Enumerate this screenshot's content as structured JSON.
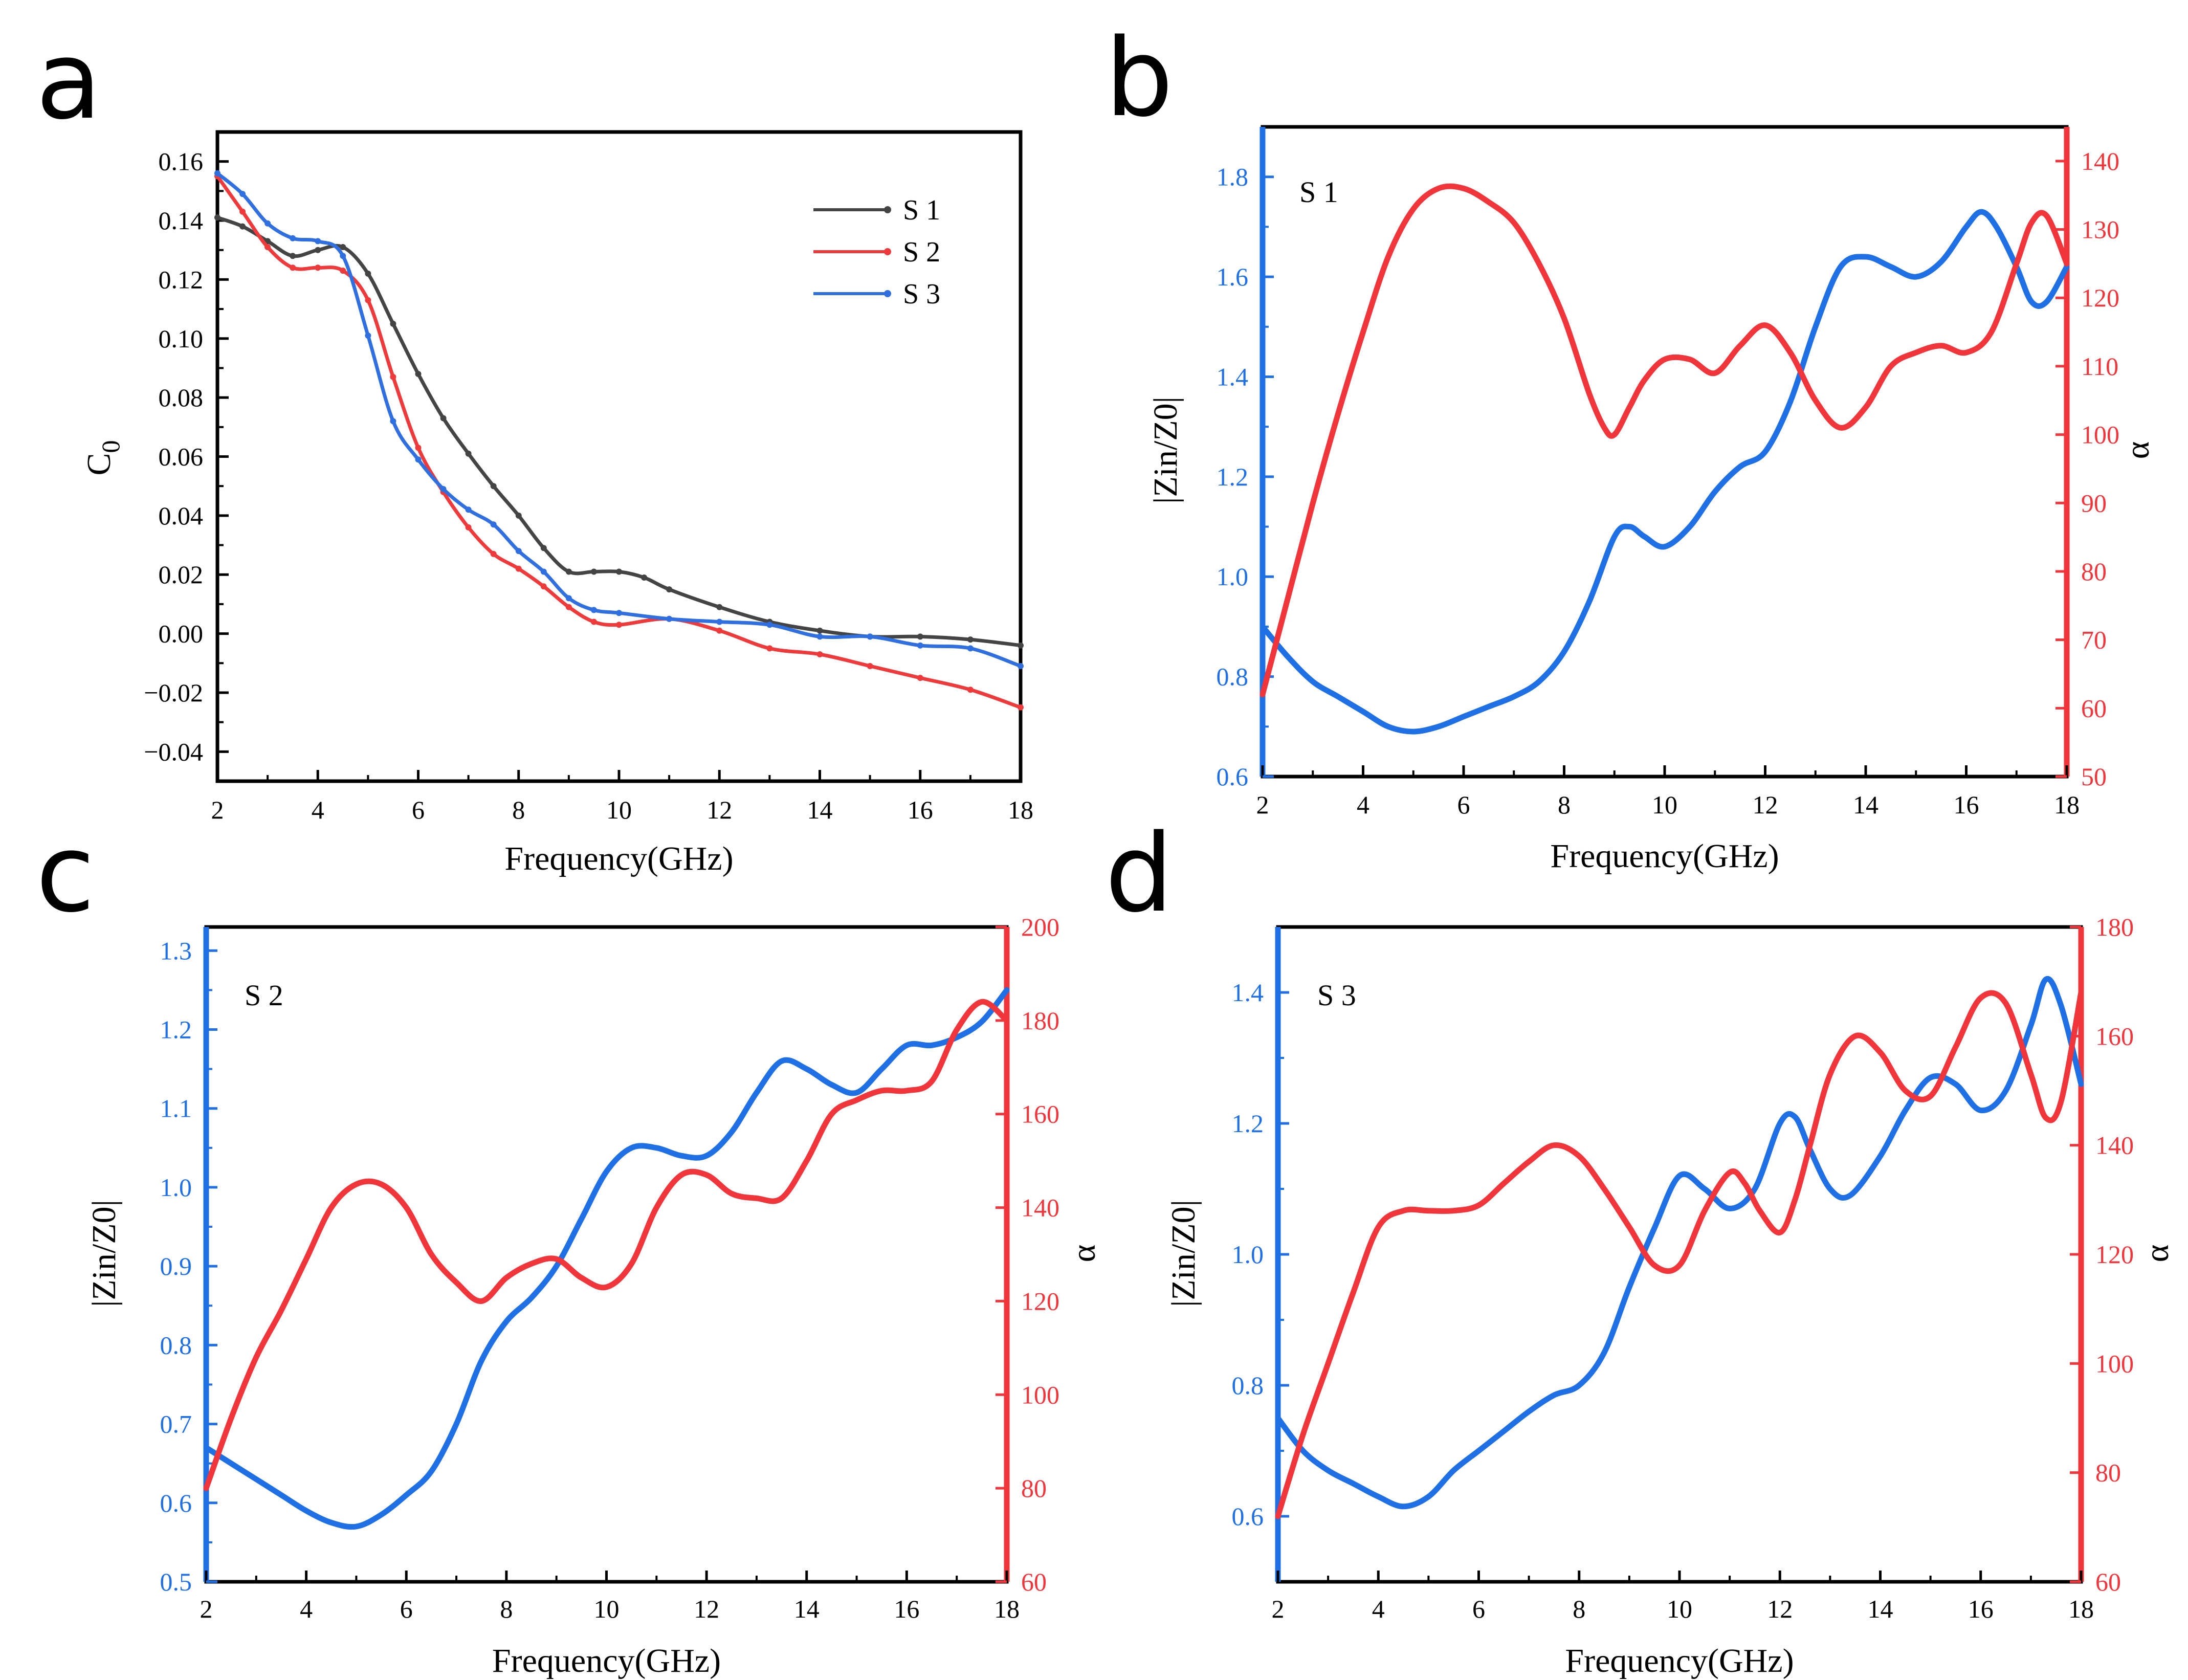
{
  "colors": {
    "s1": "#444444",
    "s2": "#ee3a3a",
    "s3": "#2f6fe0",
    "blue_axis": "#1f6fe5",
    "red_axis": "#f0353b",
    "frame": "#000000"
  },
  "chart_data": [
    {
      "id": "a",
      "letter": "a",
      "type": "line",
      "xlabel": "Frequency(GHz)",
      "ylabel": "C",
      "ylabel_sub": "0",
      "xlim": [
        2,
        18
      ],
      "ylim": [
        -0.05,
        0.17
      ],
      "xticks": [
        2,
        4,
        6,
        8,
        10,
        12,
        14,
        16,
        18
      ],
      "xtick_labels": [
        "2",
        "4",
        "6",
        "8",
        "10",
        "12",
        "14",
        "16",
        "18"
      ],
      "yticks": [
        -0.04,
        -0.02,
        0.0,
        0.02,
        0.04,
        0.06,
        0.08,
        0.1,
        0.12,
        0.14,
        0.16
      ],
      "ytick_labels": [
        "−0.04",
        "−0.02",
        "0.00",
        "0.02",
        "0.04",
        "0.06",
        "0.08",
        "0.10",
        "0.12",
        "0.14",
        "0.16"
      ],
      "legend_position": "top-right",
      "series": [
        {
          "name": "S 1",
          "color": "#444444",
          "x": [
            2,
            2.5,
            3,
            3.5,
            4,
            4.5,
            5,
            5.5,
            6,
            6.5,
            7,
            7.5,
            8,
            8.5,
            9,
            9.5,
            10,
            10.5,
            11,
            12,
            13,
            14,
            15,
            16,
            17,
            18
          ],
          "y": [
            0.141,
            0.138,
            0.133,
            0.128,
            0.13,
            0.131,
            0.122,
            0.105,
            0.088,
            0.073,
            0.061,
            0.05,
            0.04,
            0.029,
            0.021,
            0.021,
            0.021,
            0.019,
            0.015,
            0.009,
            0.004,
            0.001,
            -0.001,
            -0.001,
            -0.002,
            -0.004
          ]
        },
        {
          "name": "S 2",
          "color": "#ee3a3a",
          "x": [
            2,
            2.5,
            3,
            3.5,
            4,
            4.5,
            5,
            5.5,
            6,
            6.5,
            7,
            7.5,
            8,
            8.5,
            9,
            9.5,
            10,
            11,
            12,
            13,
            14,
            15,
            16,
            17,
            18
          ],
          "y": [
            0.155,
            0.143,
            0.131,
            0.124,
            0.124,
            0.123,
            0.113,
            0.087,
            0.063,
            0.048,
            0.036,
            0.027,
            0.022,
            0.016,
            0.009,
            0.004,
            0.003,
            0.005,
            0.001,
            -0.005,
            -0.007,
            -0.011,
            -0.015,
            -0.019,
            -0.025
          ]
        },
        {
          "name": "S 3",
          "color": "#2f6fe0",
          "x": [
            2,
            2.5,
            3,
            3.5,
            4,
            4.5,
            5,
            5.5,
            6,
            6.5,
            7,
            7.5,
            8,
            8.5,
            9,
            9.5,
            10,
            11,
            12,
            13,
            14,
            15,
            16,
            17,
            18
          ],
          "y": [
            0.156,
            0.149,
            0.139,
            0.134,
            0.133,
            0.128,
            0.101,
            0.072,
            0.059,
            0.049,
            0.042,
            0.037,
            0.028,
            0.021,
            0.012,
            0.008,
            0.007,
            0.005,
            0.004,
            0.003,
            -0.001,
            -0.001,
            -0.004,
            -0.005,
            -0.011
          ]
        }
      ]
    },
    {
      "id": "b",
      "letter": "b",
      "type": "line",
      "dual_axis": true,
      "inset_label": "S 1",
      "xlabel": "Frequency(GHz)",
      "ylabel": "|Zin/Z0|",
      "ylabel_right": "α",
      "xlim": [
        2,
        18
      ],
      "ylim": [
        0.6,
        1.9
      ],
      "ylim_right": [
        50,
        145
      ],
      "xticks": [
        2,
        4,
        6,
        8,
        10,
        12,
        14,
        16,
        18
      ],
      "xtick_labels": [
        "2",
        "4",
        "6",
        "8",
        "10",
        "12",
        "14",
        "16",
        "18"
      ],
      "yticks": [
        0.6,
        0.8,
        1.0,
        1.2,
        1.4,
        1.6,
        1.8
      ],
      "ytick_labels": [
        "0.6",
        "0.8",
        "1.0",
        "1.2",
        "1.4",
        "1.6",
        "1.8"
      ],
      "yticks_right": [
        50,
        60,
        70,
        80,
        90,
        100,
        110,
        120,
        130,
        140
      ],
      "ytick_labels_right": [
        "50",
        "60",
        "70",
        "80",
        "90",
        "100",
        "110",
        "120",
        "130",
        "140"
      ],
      "series": [
        {
          "name": "|Zin/Z0|",
          "axis": "left",
          "color": "#1f6fe5",
          "x": [
            2,
            2.5,
            3,
            3.5,
            4,
            4.5,
            5,
            5.5,
            6,
            6.5,
            7,
            7.5,
            8,
            8.5,
            9,
            9.3,
            9.6,
            10,
            10.5,
            11,
            11.5,
            12,
            12.5,
            13,
            13.5,
            14,
            14.5,
            15,
            15.5,
            16,
            16.3,
            16.6,
            17,
            17.3,
            17.6,
            18
          ],
          "y": [
            0.9,
            0.84,
            0.79,
            0.76,
            0.73,
            0.7,
            0.69,
            0.7,
            0.72,
            0.74,
            0.76,
            0.79,
            0.85,
            0.95,
            1.08,
            1.1,
            1.08,
            1.06,
            1.1,
            1.17,
            1.22,
            1.25,
            1.35,
            1.5,
            1.62,
            1.64,
            1.62,
            1.6,
            1.63,
            1.7,
            1.73,
            1.7,
            1.62,
            1.55,
            1.55,
            1.62
          ]
        },
        {
          "name": "α",
          "axis": "right",
          "color": "#f0353b",
          "x": [
            2,
            2.5,
            3,
            3.5,
            4,
            4.5,
            5,
            5.5,
            6,
            6.5,
            7,
            7.5,
            8,
            8.5,
            8.8,
            9,
            9.3,
            9.6,
            10,
            10.5,
            11,
            11.5,
            12,
            12.5,
            13,
            13.5,
            14,
            14.5,
            15,
            15.5,
            16,
            16.5,
            17,
            17.3,
            17.6,
            18
          ],
          "y": [
            62,
            76,
            90,
            103,
            115,
            126,
            133,
            136,
            136,
            134,
            131,
            125,
            117,
            106,
            101,
            100,
            104,
            108,
            111,
            111,
            109,
            113,
            116,
            112,
            105,
            101,
            104,
            110,
            112,
            113,
            112,
            115,
            125,
            131,
            132,
            125
          ]
        }
      ]
    },
    {
      "id": "c",
      "letter": "c",
      "type": "line",
      "dual_axis": true,
      "inset_label": "S 2",
      "xlabel": "Frequency(GHz)",
      "ylabel": "|Zin/Z0|",
      "ylabel_right": "α",
      "xlim": [
        2,
        18
      ],
      "ylim": [
        0.5,
        1.33
      ],
      "ylim_right": [
        60,
        200
      ],
      "xticks": [
        2,
        4,
        6,
        8,
        10,
        12,
        14,
        16,
        18
      ],
      "xtick_labels": [
        "2",
        "4",
        "6",
        "8",
        "10",
        "12",
        "14",
        "16",
        "18"
      ],
      "yticks": [
        0.5,
        0.6,
        0.7,
        0.8,
        0.9,
        1.0,
        1.1,
        1.2,
        1.3
      ],
      "ytick_labels": [
        "0.5",
        "0.6",
        "0.7",
        "0.8",
        "0.9",
        "1.0",
        "1.1",
        "1.2",
        "1.3"
      ],
      "yticks_right": [
        60,
        80,
        100,
        120,
        140,
        160,
        180,
        200
      ],
      "ytick_labels_right": [
        "60",
        "80",
        "100",
        "120",
        "140",
        "160",
        "180",
        "200"
      ],
      "series": [
        {
          "name": "|Zin/Z0|",
          "axis": "left",
          "color": "#1f6fe5",
          "x": [
            2,
            2.5,
            3,
            3.5,
            4,
            4.5,
            5,
            5.5,
            6,
            6.5,
            7,
            7.5,
            8,
            8.5,
            9,
            9.5,
            10,
            10.5,
            11,
            11.5,
            12,
            12.5,
            13,
            13.5,
            14,
            14.5,
            15,
            15.5,
            16,
            16.5,
            17,
            17.5,
            18
          ],
          "y": [
            0.67,
            0.65,
            0.63,
            0.61,
            0.59,
            0.575,
            0.57,
            0.585,
            0.61,
            0.64,
            0.7,
            0.78,
            0.83,
            0.86,
            0.9,
            0.96,
            1.02,
            1.05,
            1.05,
            1.04,
            1.04,
            1.07,
            1.12,
            1.16,
            1.15,
            1.13,
            1.12,
            1.15,
            1.18,
            1.18,
            1.19,
            1.21,
            1.25
          ]
        },
        {
          "name": "α",
          "axis": "right",
          "color": "#f0353b",
          "x": [
            2,
            2.5,
            3,
            3.5,
            4,
            4.5,
            5,
            5.5,
            6,
            6.5,
            7,
            7.5,
            8,
            8.5,
            9,
            9.5,
            10,
            10.5,
            11,
            11.5,
            12,
            12.5,
            13,
            13.5,
            14,
            14.5,
            15,
            15.5,
            16,
            16.5,
            17,
            17.5,
            18
          ],
          "y": [
            80,
            95,
            108,
            118,
            129,
            140,
            145,
            145,
            140,
            130,
            124,
            120,
            125,
            128,
            129,
            125,
            123,
            128,
            140,
            147,
            147,
            143,
            142,
            142,
            150,
            160,
            163,
            165,
            165,
            167,
            178,
            184,
            180
          ]
        }
      ]
    },
    {
      "id": "d",
      "letter": "d",
      "type": "line",
      "dual_axis": true,
      "inset_label": "S 3",
      "xlabel": "Frequency(GHz)",
      "ylabel": "|Zin/Z0|",
      "ylabel_right": "α",
      "xlim": [
        2,
        18
      ],
      "ylim": [
        0.5,
        1.5
      ],
      "ylim_right": [
        60,
        180
      ],
      "xticks": [
        2,
        4,
        6,
        8,
        10,
        12,
        14,
        16,
        18
      ],
      "xtick_labels": [
        "2",
        "4",
        "6",
        "8",
        "10",
        "12",
        "14",
        "16",
        "18"
      ],
      "yticks": [
        0.6,
        0.8,
        1.0,
        1.2,
        1.4
      ],
      "ytick_labels": [
        "0.6",
        "0.8",
        "1.0",
        "1.2",
        "1.4"
      ],
      "yticks_right": [
        60,
        80,
        100,
        120,
        140,
        160,
        180
      ],
      "ytick_labels_right": [
        "60",
        "80",
        "100",
        "120",
        "140",
        "160",
        "180"
      ],
      "series": [
        {
          "name": "|Zin/Z0|",
          "axis": "left",
          "color": "#1f6fe5",
          "x": [
            2,
            2.5,
            3,
            3.5,
            4,
            4.5,
            5,
            5.5,
            6,
            6.5,
            7,
            7.5,
            8,
            8.5,
            9,
            9.5,
            10,
            10.5,
            11,
            11.5,
            12,
            12.3,
            12.6,
            13,
            13.4,
            14,
            14.5,
            15,
            15.5,
            16,
            16.5,
            17,
            17.3,
            17.6,
            18
          ],
          "y": [
            0.75,
            0.7,
            0.67,
            0.65,
            0.63,
            0.615,
            0.63,
            0.67,
            0.7,
            0.73,
            0.76,
            0.785,
            0.8,
            0.85,
            0.95,
            1.04,
            1.12,
            1.1,
            1.07,
            1.1,
            1.2,
            1.21,
            1.16,
            1.1,
            1.09,
            1.15,
            1.22,
            1.27,
            1.26,
            1.22,
            1.25,
            1.35,
            1.42,
            1.38,
            1.26
          ]
        },
        {
          "name": "α",
          "axis": "right",
          "color": "#f0353b",
          "x": [
            2,
            2.5,
            3,
            3.5,
            4,
            4.5,
            5,
            5.5,
            6,
            6.5,
            7,
            7.5,
            8,
            8.5,
            9,
            9.5,
            10,
            10.5,
            11,
            11.3,
            11.6,
            12,
            12.3,
            12.6,
            13,
            13.5,
            14,
            14.5,
            15,
            15.5,
            16,
            16.5,
            17,
            17.3,
            17.6,
            18
          ],
          "y": [
            72,
            87,
            100,
            113,
            125,
            128,
            128,
            128,
            129,
            133,
            137,
            140,
            138,
            132,
            125,
            118,
            118,
            128,
            135,
            133,
            128,
            124,
            130,
            140,
            153,
            160,
            157,
            150,
            149,
            158,
            167,
            166,
            153,
            145,
            148,
            168
          ]
        }
      ]
    }
  ]
}
